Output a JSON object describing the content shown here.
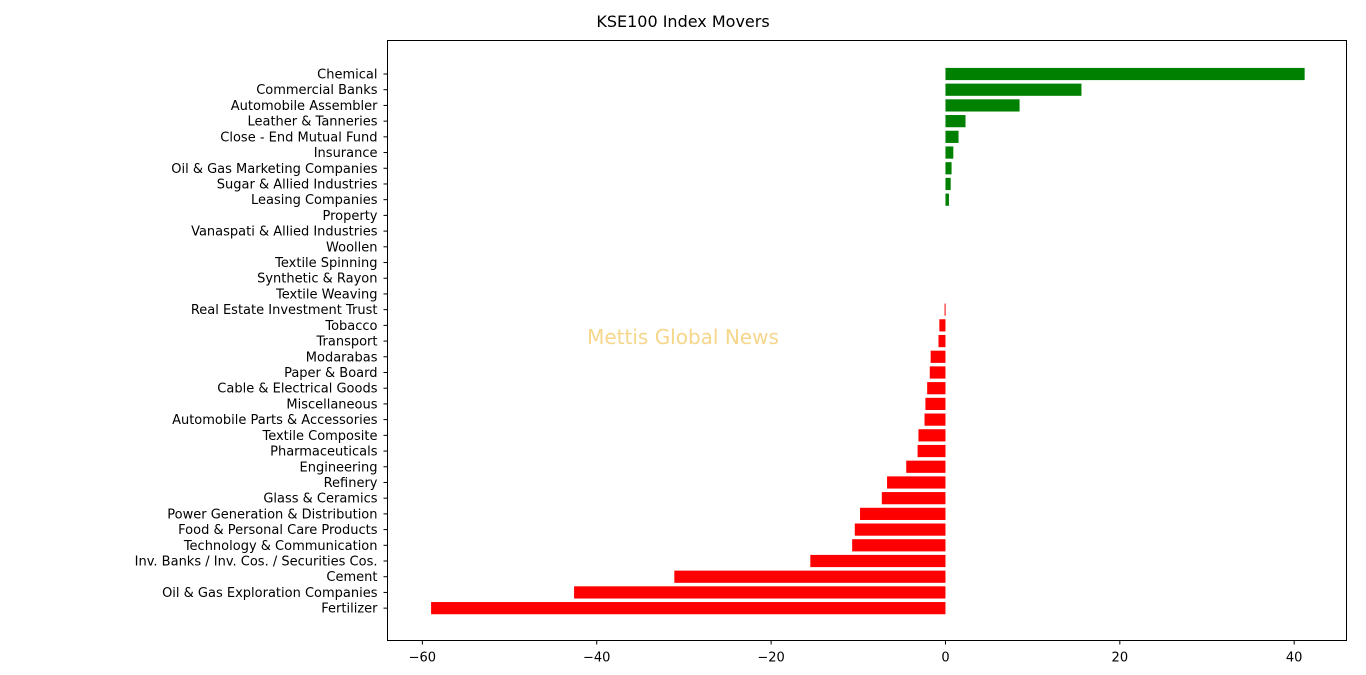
{
  "chart_data": {
    "type": "bar",
    "orientation": "horizontal",
    "title": "KSE100 Index Movers",
    "xlabel": "",
    "ylabel": "",
    "xlim": [
      -64,
      46
    ],
    "xticks": [
      -60,
      -40,
      -20,
      0,
      20,
      40
    ],
    "xtick_labels": [
      "−60",
      "−40",
      "−20",
      "0",
      "20",
      "40"
    ],
    "grid": false,
    "legend": "none",
    "positive_color": "#008000",
    "negative_color": "#ff0000",
    "categories": [
      "Chemical",
      "Commercial Banks",
      "Automobile Assembler",
      "Leather & Tanneries",
      "Close - End Mutual Fund",
      "Insurance",
      "Oil & Gas Marketing Companies",
      "Sugar & Allied Industries",
      "Leasing Companies",
      "Property",
      "Vanaspati & Allied Industries",
      "Woollen",
      "Textile Spinning",
      "Synthetic & Rayon",
      "Textile Weaving",
      "Real Estate Investment Trust",
      "Tobacco",
      "Transport",
      "Modarabas",
      "Paper & Board",
      "Cable & Electrical Goods",
      "Miscellaneous",
      "Automobile Parts & Accessories",
      "Textile Composite",
      "Pharmaceuticals",
      "Engineering",
      "Refinery",
      "Glass & Ceramics",
      "Power Generation & Distribution",
      "Food & Personal Care Products",
      "Technology & Communication",
      "Inv. Banks / Inv. Cos. / Securities Cos.",
      "Cement",
      "Oil & Gas Exploration Companies",
      "Fertilizer"
    ],
    "values": [
      41.2,
      15.6,
      8.5,
      2.3,
      1.5,
      0.9,
      0.7,
      0.6,
      0.4,
      0,
      0,
      0,
      0,
      0,
      0,
      -0.1,
      -0.7,
      -0.8,
      -1.7,
      -1.8,
      -2.1,
      -2.3,
      -2.4,
      -3.1,
      -3.2,
      -4.5,
      -6.7,
      -7.3,
      -9.8,
      -10.4,
      -10.7,
      -15.5,
      -31.1,
      -42.6,
      -59.0
    ]
  },
  "watermark": {
    "text": "Mettis Global News",
    "color": "#f5d68a"
  }
}
